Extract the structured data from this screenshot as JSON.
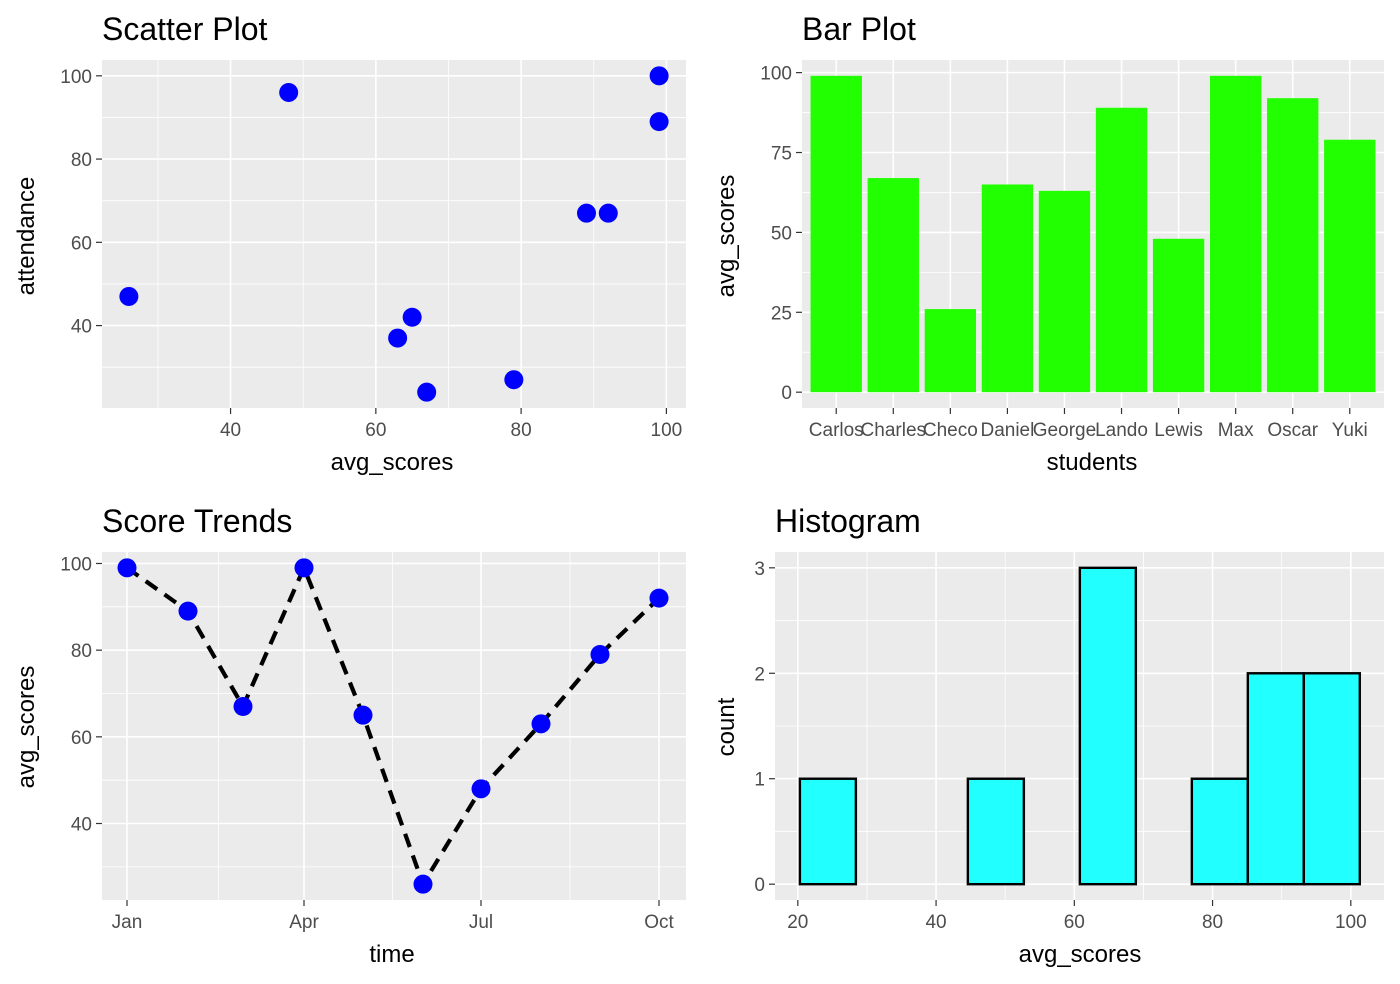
{
  "chart_data": [
    {
      "id": "scatter",
      "type": "scatter",
      "title": "Scatter Plot",
      "xlabel": "avg_scores",
      "ylabel": "attendance",
      "xlim": [
        22.3,
        102.7
      ],
      "ylim": [
        20.2,
        103.8
      ],
      "xticks": [
        40,
        60,
        80,
        100
      ],
      "yticks": [
        40,
        60,
        80,
        100
      ],
      "grid": true,
      "point_color": "#0000ff",
      "points": [
        {
          "x": 26,
          "y": 47
        },
        {
          "x": 48,
          "y": 96
        },
        {
          "x": 63,
          "y": 37
        },
        {
          "x": 65,
          "y": 42
        },
        {
          "x": 67,
          "y": 24
        },
        {
          "x": 79,
          "y": 27
        },
        {
          "x": 89,
          "y": 67
        },
        {
          "x": 92,
          "y": 67
        },
        {
          "x": 99,
          "y": 100
        },
        {
          "x": 99,
          "y": 89
        }
      ]
    },
    {
      "id": "bar",
      "type": "bar",
      "title": "Bar Plot",
      "xlabel": "students",
      "ylabel": "avg_scores",
      "ylim": [
        -4.95,
        103.95
      ],
      "yticks": [
        0,
        25,
        50,
        75,
        100
      ],
      "grid": true,
      "bar_color": "#22ff00",
      "categories": [
        "Carlos",
        "Charles",
        "Checo",
        "Daniel",
        "George",
        "Lando",
        "Lewis",
        "Max",
        "Oscar",
        "Yuki"
      ],
      "values": [
        99,
        67,
        26,
        65,
        63,
        89,
        48,
        99,
        92,
        79
      ]
    },
    {
      "id": "line",
      "type": "line",
      "title": "Score Trends",
      "xlabel": "time",
      "ylabel": "avg_scores",
      "x_tick_labels": [
        "Jan",
        "Apr",
        "Jul",
        "Oct"
      ],
      "ylim": [
        22.35,
        102.65
      ],
      "yticks": [
        40,
        60,
        80,
        100
      ],
      "grid": true,
      "line_color": "#000000",
      "line_style": "dashed",
      "point_color": "#0000ff",
      "x": [
        "Jan",
        "Feb",
        "Mar",
        "Apr",
        "May",
        "Jun",
        "Jul",
        "Aug",
        "Sep",
        "Oct"
      ],
      "values": [
        99,
        89,
        67,
        99,
        65,
        26,
        48,
        63,
        79,
        92
      ]
    },
    {
      "id": "histogram",
      "type": "bar",
      "title": "Histogram",
      "xlabel": "avg_scores",
      "ylabel": "count",
      "xlim": [
        16.7,
        104.8
      ],
      "ylim": [
        -0.15,
        3.15
      ],
      "xticks": [
        20,
        40,
        60,
        80,
        100
      ],
      "yticks": [
        0,
        1,
        2,
        3
      ],
      "grid": true,
      "bar_color": "#22ffff",
      "outline_color": "#000000",
      "bins": [
        {
          "start": 20.3,
          "end": 28.4,
          "count": 1
        },
        {
          "start": 28.4,
          "end": 36.5,
          "count": 0
        },
        {
          "start": 36.5,
          "end": 44.6,
          "count": 0
        },
        {
          "start": 44.6,
          "end": 52.7,
          "count": 1
        },
        {
          "start": 52.7,
          "end": 60.8,
          "count": 0
        },
        {
          "start": 60.8,
          "end": 68.9,
          "count": 3
        },
        {
          "start": 68.9,
          "end": 77.0,
          "count": 0
        },
        {
          "start": 77.0,
          "end": 85.1,
          "count": 1
        },
        {
          "start": 85.1,
          "end": 93.2,
          "count": 2
        },
        {
          "start": 93.2,
          "end": 101.3,
          "count": 2
        }
      ]
    }
  ]
}
